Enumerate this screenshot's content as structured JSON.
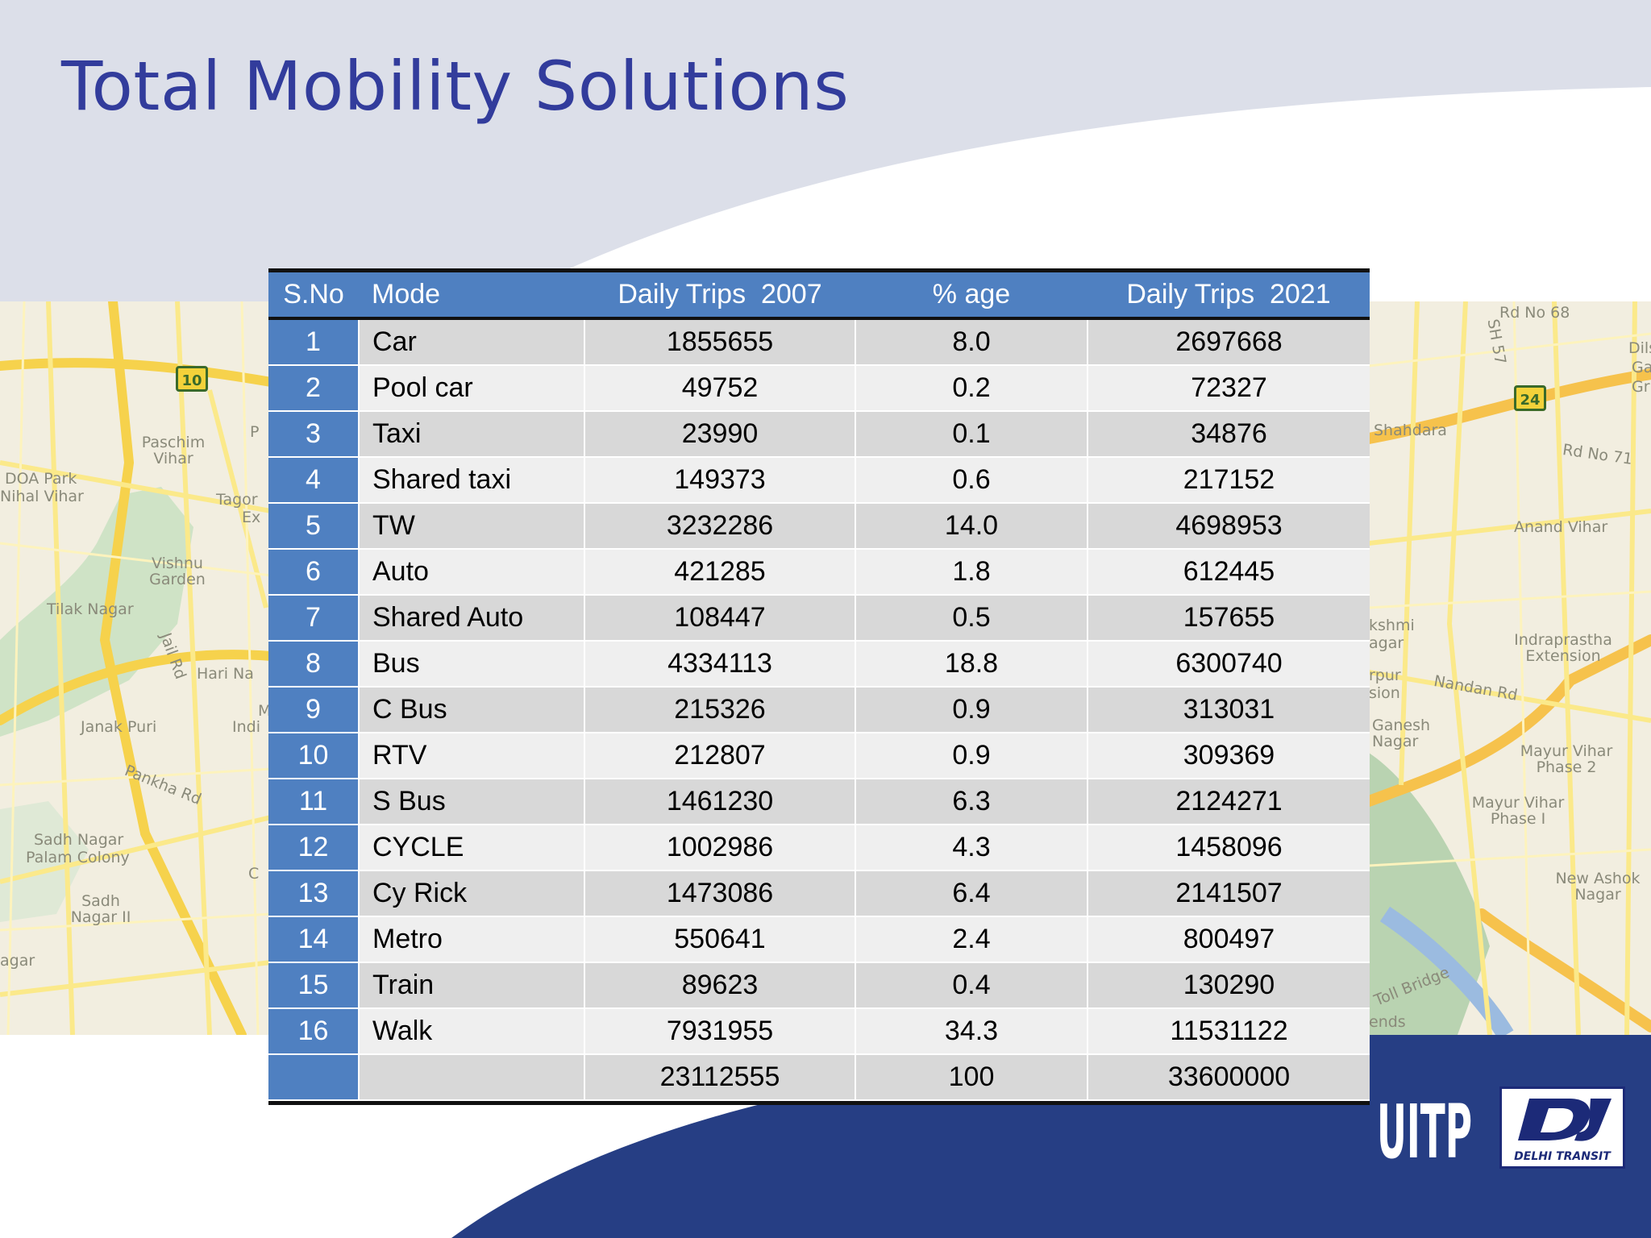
{
  "slide": {
    "title": "Total Mobility Solutions",
    "colors": {
      "title": "#323c9c",
      "header_band": "#dcdfe9",
      "footer_band": "#263e84",
      "table_header": "#4f80c1",
      "row_dark": "#d8d8d8",
      "row_light": "#efefef"
    }
  },
  "table": {
    "headers": [
      "S.No",
      "Mode",
      "Daily Trips  2007",
      "% age",
      "Daily Trips  2021"
    ],
    "rows": [
      [
        "1",
        "Car",
        "1855655",
        "8.0",
        "2697668"
      ],
      [
        "2",
        "Pool car",
        "49752",
        "0.2",
        "72327"
      ],
      [
        "3",
        "Taxi",
        "23990",
        "0.1",
        "34876"
      ],
      [
        "4",
        "Shared taxi",
        "149373",
        "0.6",
        "217152"
      ],
      [
        "5",
        "TW",
        "3232286",
        "14.0",
        "4698953"
      ],
      [
        "6",
        "Auto",
        "421285",
        "1.8",
        "612445"
      ],
      [
        "7",
        "Shared Auto",
        "108447",
        "0.5",
        "157655"
      ],
      [
        "8",
        "Bus",
        "4334113",
        "18.8",
        "6300740"
      ],
      [
        "9",
        "C Bus",
        "215326",
        "0.9",
        "313031"
      ],
      [
        "10",
        "RTV",
        "212807",
        "0.9",
        "309369"
      ],
      [
        "11",
        "S Bus",
        "1461230",
        "6.3",
        "2124271"
      ],
      [
        "12",
        "CYCLE",
        "1002986",
        "4.3",
        "1458096"
      ],
      [
        "13",
        "Cy Rick",
        "1473086",
        "6.4",
        "2141507"
      ],
      [
        "14",
        "Metro",
        "550641",
        "2.4",
        "800497"
      ],
      [
        "15",
        "Train",
        "89623",
        "0.4",
        "130290"
      ],
      [
        "16",
        "Walk",
        "7931955",
        "34.3",
        "11531122"
      ],
      [
        "",
        "",
        "23112555",
        "100",
        "33600000"
      ]
    ]
  },
  "map_left": {
    "labels": [
      "Paschim Vihar",
      "DOA Park",
      "Nihal Vihar",
      "Tagor",
      "Ex",
      "Vishnu Garden",
      "Tilak Nagar",
      "Jail Rd",
      "Hari Na",
      "Janak Puri",
      "Indi",
      "Pankha Rd",
      "Sadh Nagar",
      "Palam Colony",
      "Sadh Nagar II",
      "agar",
      "C",
      "P",
      "M"
    ],
    "shields": [
      "10"
    ]
  },
  "map_right": {
    "labels": [
      "Rd No 68",
      "SH 57",
      "Dils",
      "Ga",
      "Gr",
      "Shahdara",
      "Rd No 71",
      "Anand Vihar",
      "kshmi",
      "agar",
      "rpur",
      "sion",
      "Indraprastha Extension",
      "Nandan Rd",
      "Ganesh Nagar",
      "Mayur Vihar Phase 2",
      "Mayur Vihar Phase I",
      "New Ashok Nagar",
      "Toll Bridge",
      "ends"
    ],
    "shields": [
      "24"
    ]
  },
  "logos": {
    "uitp": "UITP",
    "delhi_transit": "DELHI TRANSIT"
  }
}
